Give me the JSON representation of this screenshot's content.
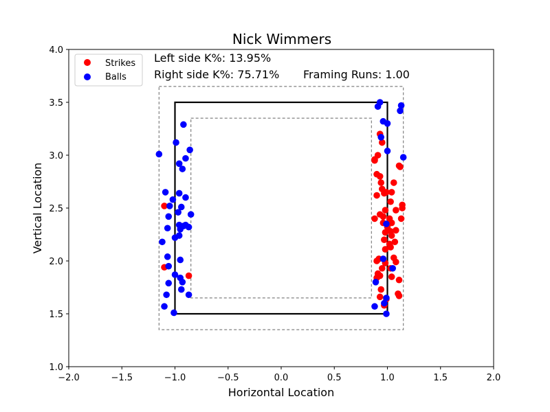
{
  "chart_data": {
    "type": "scatter",
    "title": "Nick Wimmers",
    "xlabel": "Horizontal Location",
    "ylabel": "Vertical Location",
    "xlim": [
      -2.0,
      2.0
    ],
    "ylim": [
      1.0,
      4.0
    ],
    "xticks": [
      "−2.0",
      "−1.5",
      "−1.0",
      "−0.5",
      "0.0",
      "0.5",
      "1.0",
      "1.5",
      "2.0"
    ],
    "yticks": [
      "1.0",
      "1.5",
      "2.0",
      "2.5",
      "3.0",
      "3.5",
      "4.0"
    ],
    "grid": false,
    "legend_position": "top-left",
    "annotations": {
      "left_k": "Left side K%: 13.95%",
      "right_k": "Right side K%: 75.71%",
      "framing": "Framing Runs: 1.00"
    },
    "zones": {
      "strike_zone": {
        "x": [
          -1.0,
          1.0
        ],
        "y": [
          1.5,
          3.5
        ],
        "color": "#000000"
      },
      "outer_zone": {
        "x": [
          -1.15,
          1.15
        ],
        "y": [
          1.35,
          3.65
        ],
        "color": "#808080"
      },
      "inner_zone": {
        "x": [
          -0.85,
          0.85
        ],
        "y": [
          1.65,
          3.35
        ],
        "color": "#808080"
      }
    },
    "series": [
      {
        "name": "Strikes",
        "color": "#ff0000",
        "points": [
          [
            -1.1,
            2.52
          ],
          [
            -1.1,
            1.94
          ],
          [
            -0.87,
            1.86
          ],
          [
            0.93,
            3.2
          ],
          [
            0.95,
            3.12
          ],
          [
            0.88,
            2.96
          ],
          [
            0.91,
            3.0
          ],
          [
            0.9,
            2.82
          ],
          [
            0.93,
            2.8
          ],
          [
            0.94,
            2.74
          ],
          [
            0.95,
            2.68
          ],
          [
            0.9,
            2.62
          ],
          [
            0.97,
            2.64
          ],
          [
            0.99,
            2.65
          ],
          [
            1.04,
            2.65
          ],
          [
            1.03,
            2.56
          ],
          [
            1.06,
            2.74
          ],
          [
            1.11,
            2.9
          ],
          [
            1.12,
            2.89
          ],
          [
            1.14,
            2.5
          ],
          [
            1.14,
            2.53
          ],
          [
            1.13,
            2.4
          ],
          [
            1.08,
            2.48
          ],
          [
            0.93,
            2.44
          ],
          [
            0.96,
            2.42
          ],
          [
            0.98,
            2.48
          ],
          [
            1.02,
            2.4
          ],
          [
            1.04,
            2.36
          ],
          [
            0.88,
            2.4
          ],
          [
            0.96,
            2.36
          ],
          [
            1.0,
            2.32
          ],
          [
            1.03,
            2.28
          ],
          [
            1.08,
            2.29
          ],
          [
            0.98,
            2.27
          ],
          [
            1.04,
            2.24
          ],
          [
            0.97,
            2.2
          ],
          [
            1.02,
            2.16
          ],
          [
            1.07,
            2.18
          ],
          [
            0.98,
            2.11
          ],
          [
            1.03,
            2.13
          ],
          [
            0.92,
            2.02
          ],
          [
            0.9,
            2.0
          ],
          [
            0.98,
            1.98
          ],
          [
            1.06,
            2.03
          ],
          [
            1.08,
            1.99
          ],
          [
            0.95,
            1.93
          ],
          [
            1.03,
            1.93
          ],
          [
            0.91,
            1.88
          ],
          [
            0.93,
            1.86
          ],
          [
            1.04,
            1.85
          ],
          [
            0.9,
            1.84
          ],
          [
            1.11,
            1.82
          ],
          [
            0.94,
            1.73
          ],
          [
            1.1,
            1.69
          ],
          [
            1.11,
            1.67
          ],
          [
            0.93,
            1.66
          ],
          [
            0.99,
            1.64
          ],
          [
            0.97,
            1.58
          ],
          [
            0.88,
            2.95
          ]
        ]
      },
      {
        "name": "Balls",
        "color": "#0000ff",
        "points": [
          [
            -1.15,
            3.01
          ],
          [
            -0.92,
            3.29
          ],
          [
            -0.99,
            3.12
          ],
          [
            -0.86,
            3.05
          ],
          [
            -0.9,
            2.97
          ],
          [
            -0.96,
            2.92
          ],
          [
            -0.93,
            2.87
          ],
          [
            -1.09,
            2.65
          ],
          [
            -0.96,
            2.64
          ],
          [
            -0.9,
            2.6
          ],
          [
            -1.02,
            2.58
          ],
          [
            -1.05,
            2.52
          ],
          [
            -0.94,
            2.51
          ],
          [
            -0.85,
            2.44
          ],
          [
            -0.97,
            2.46
          ],
          [
            -1.06,
            2.42
          ],
          [
            -0.96,
            2.34
          ],
          [
            -0.9,
            2.34
          ],
          [
            -0.87,
            2.32
          ],
          [
            -0.92,
            2.33
          ],
          [
            -1.07,
            2.31
          ],
          [
            -0.95,
            2.3
          ],
          [
            -0.96,
            2.24
          ],
          [
            -1.0,
            2.22
          ],
          [
            -1.12,
            2.18
          ],
          [
            -1.07,
            2.04
          ],
          [
            -0.95,
            2.01
          ],
          [
            -1.06,
            1.95
          ],
          [
            -1.0,
            1.87
          ],
          [
            -0.95,
            1.84
          ],
          [
            -0.93,
            1.8
          ],
          [
            -1.06,
            1.79
          ],
          [
            -0.94,
            1.73
          ],
          [
            -1.08,
            1.68
          ],
          [
            -0.87,
            1.68
          ],
          [
            -1.1,
            1.57
          ],
          [
            -1.01,
            1.51
          ],
          [
            0.93,
            3.5
          ],
          [
            0.91,
            3.46
          ],
          [
            1.13,
            3.47
          ],
          [
            1.12,
            3.42
          ],
          [
            0.96,
            3.32
          ],
          [
            1.0,
            3.3
          ],
          [
            0.94,
            3.17
          ],
          [
            1.0,
            3.04
          ],
          [
            1.15,
            2.98
          ],
          [
            0.99,
            2.35
          ],
          [
            0.96,
            2.02
          ],
          [
            1.05,
            1.93
          ],
          [
            0.89,
            1.8
          ],
          [
            0.99,
            1.65
          ],
          [
            0.97,
            1.6
          ],
          [
            0.88,
            1.57
          ],
          [
            0.99,
            1.5
          ]
        ]
      }
    ]
  }
}
